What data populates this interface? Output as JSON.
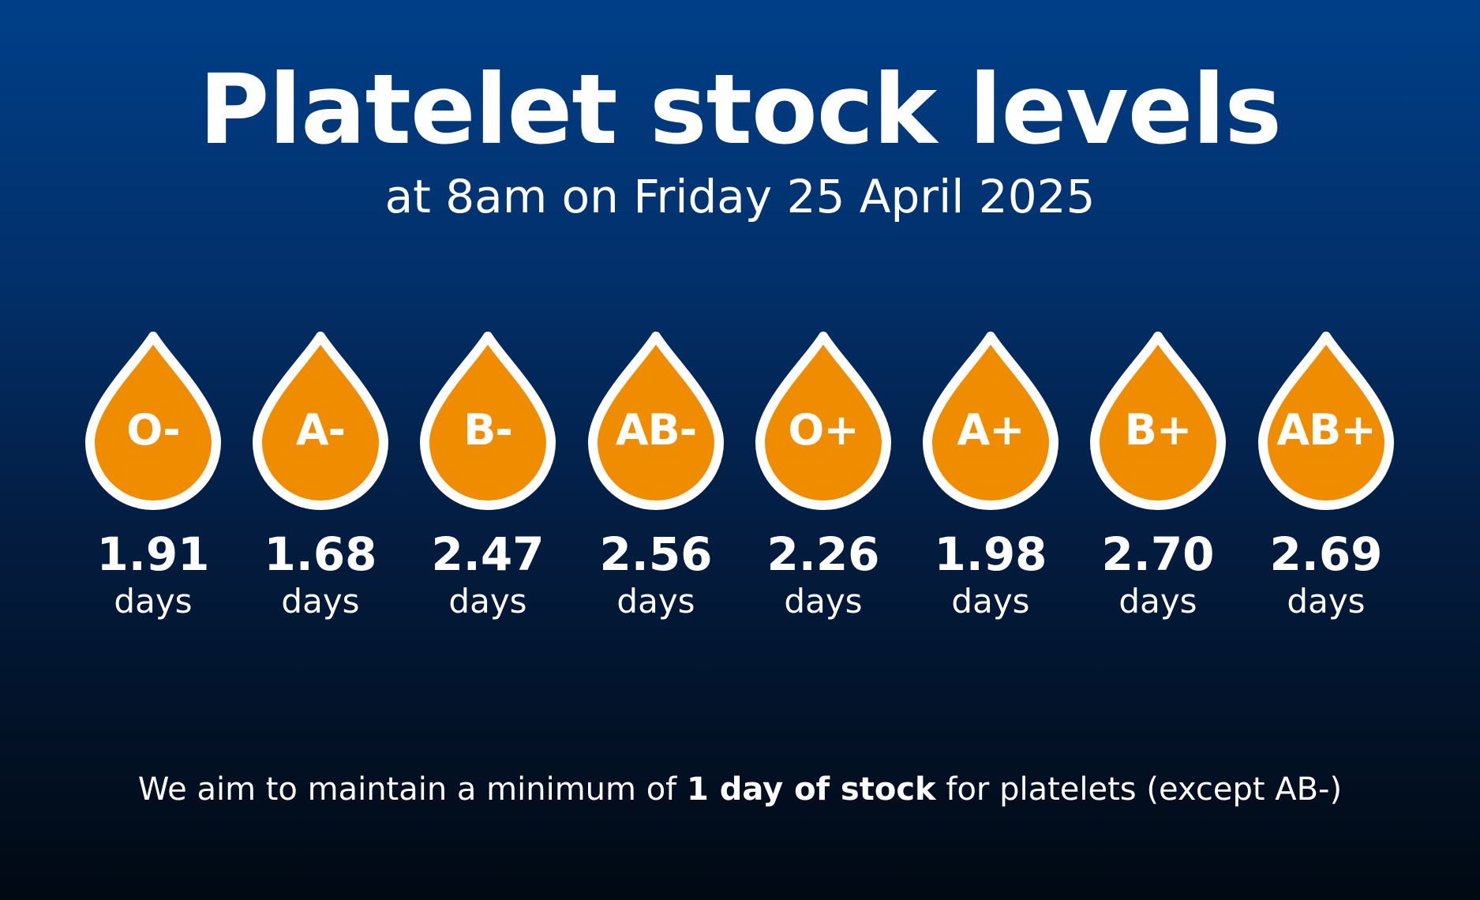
{
  "header": {
    "title": "Platelet stock levels",
    "subtitle": "at 8am on Friday 25 April 2025"
  },
  "colors": {
    "drop_fill": "#f08c00",
    "drop_outline": "#ffffff",
    "text": "#ffffff",
    "background_top": "#003f88",
    "background_bottom": "#010912"
  },
  "groups": [
    {
      "label": "O-",
      "value": "1.91",
      "unit": "days"
    },
    {
      "label": "A-",
      "value": "1.68",
      "unit": "days"
    },
    {
      "label": "B-",
      "value": "2.47",
      "unit": "days"
    },
    {
      "label": "AB-",
      "value": "2.56",
      "unit": "days"
    },
    {
      "label": "O+",
      "value": "2.26",
      "unit": "days"
    },
    {
      "label": "A+",
      "value": "1.98",
      "unit": "days"
    },
    {
      "label": "B+",
      "value": "2.70",
      "unit": "days"
    },
    {
      "label": "AB+",
      "value": "2.69",
      "unit": "days"
    }
  ],
  "footnote": {
    "before": "We aim to maintain a minimum of ",
    "emphasis": "1 day of stock",
    "after": " for platelets (except AB-)"
  }
}
